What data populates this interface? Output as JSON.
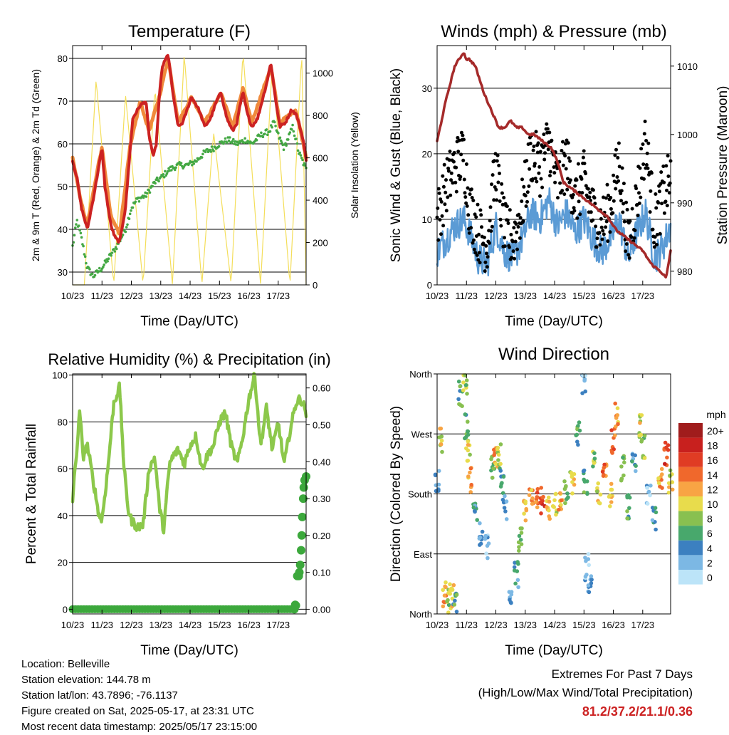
{
  "panels": {
    "temp": {
      "title": "Temperature (F)",
      "xlabel": "Time (Day/UTC)",
      "ylabel_left": "2m & 9m T (Red, Orange) & 2m Td (Green)",
      "ylabel_right": "Solar Insolation (Yellow)"
    },
    "wind": {
      "title": "Winds (mph) & Pressure (mb)",
      "xlabel": "Time (Day/UTC)",
      "ylabel_left": "Sonic Wind & Gust (Blue, Black)",
      "ylabel_right": "Station Pressure (Maroon)"
    },
    "rh": {
      "title": "Relative Humidity (%) & Precipitation (in)",
      "xlabel": "Time (Day/UTC)",
      "ylabel_left": "Percent & Total Rainfall"
    },
    "dir": {
      "title": "Wind Direction",
      "xlabel": "Time (Day/UTC)",
      "ylabel_left": "Direction (Colored By Speed)"
    }
  },
  "colorbar": {
    "unit": "mph",
    "labels": [
      "20+",
      "18",
      "16",
      "14",
      "12",
      "10",
      "8",
      "6",
      "4",
      "2",
      "0"
    ],
    "colors": [
      "#a01c1c",
      "#c8201e",
      "#e03c24",
      "#f0682c",
      "#f8a444",
      "#e8dc4c",
      "#88c050",
      "#48a86c",
      "#3c80c0",
      "#7cb8e4",
      "#bce4f8"
    ]
  },
  "info": {
    "location": "Location: Belleville",
    "elevation": "Station elevation: 144.78 m",
    "latlon": "Station lat/lon: 43.7896; -76.1137",
    "created": "Figure created on Sat, 2025-05-17, at 23:31 UTC",
    "recent": "Most recent data timestamp: 2025/05/17 23:15:00"
  },
  "extremes": {
    "line1": "Extremes For Past 7 Days",
    "line2": "(High/Low/Max Wind/Total Precipitation)",
    "values": "81.2/37.2/21.1/0.36"
  },
  "chart_data": [
    {
      "type": "line",
      "title": "Temperature (F)",
      "xlabel": "Time (Day/UTC)",
      "ylabel": "2m & 9m T (Red, Orange) & 2m Td (Green)",
      "y2label": "Solar Insolation (Yellow)",
      "x_ticks": [
        "10/23",
        "11/23",
        "12/23",
        "13/23",
        "14/23",
        "15/23",
        "16/23",
        "17/23"
      ],
      "xlim": [
        10,
        17.95
      ],
      "ylim": [
        27,
        83
      ],
      "y_ticks": [
        30,
        40,
        50,
        60,
        70,
        80
      ],
      "y2lim": [
        0,
        1130
      ],
      "y2_ticks": [
        0,
        200,
        400,
        600,
        800,
        1000
      ],
      "grid": true,
      "series": [
        {
          "name": "2m T",
          "color": "#cc2222",
          "x": [
            10.0,
            10.15,
            10.3,
            10.5,
            10.7,
            10.9,
            11.0,
            11.1,
            11.3,
            11.45,
            11.6,
            11.8,
            11.95,
            12.05,
            12.3,
            12.5,
            12.6,
            12.75,
            12.85,
            12.95,
            13.05,
            13.25,
            13.45,
            13.6,
            13.75,
            13.9,
            14.05,
            14.3,
            14.5,
            14.7,
            14.9,
            15.05,
            15.25,
            15.45,
            15.6,
            15.7,
            15.8,
            15.95,
            16.1,
            16.3,
            16.45,
            16.6,
            16.75,
            16.9,
            17.05,
            17.25,
            17.45,
            17.6,
            17.7,
            17.85,
            17.95
          ],
          "y": [
            56,
            52,
            45,
            40,
            47,
            55,
            59,
            50,
            41,
            38,
            37,
            45,
            58,
            66,
            69,
            70,
            62,
            57,
            60,
            71,
            78,
            81,
            70,
            64,
            65,
            68,
            71,
            68,
            64,
            66,
            70,
            72,
            66,
            63,
            65,
            69,
            72,
            67,
            64,
            66,
            70,
            74,
            79,
            71,
            64,
            65,
            68,
            67,
            65,
            61,
            56
          ]
        },
        {
          "name": "9m T",
          "color": "#f08a3c",
          "x": [
            10.0,
            10.3,
            10.5,
            10.9,
            11.0,
            11.3,
            11.6,
            11.95,
            12.3,
            12.6,
            12.95,
            13.25,
            13.6,
            14.05,
            14.5,
            15.05,
            15.45,
            15.8,
            16.1,
            16.6,
            16.75,
            17.05,
            17.6,
            17.95
          ],
          "y": [
            57,
            46,
            41,
            56,
            59,
            43,
            39,
            59,
            70,
            63,
            71,
            80,
            65,
            71,
            65,
            72,
            64,
            73,
            65,
            75,
            78,
            65,
            68,
            57
          ]
        },
        {
          "name": "2m Td",
          "color": "#44a844",
          "x": [
            10.0,
            10.15,
            10.3,
            10.5,
            10.7,
            11.0,
            11.2,
            11.5,
            11.8,
            12.0,
            12.2,
            12.5,
            12.8,
            13.0,
            13.3,
            13.6,
            13.9,
            14.2,
            14.5,
            14.8,
            15.0,
            15.3,
            15.6,
            15.9,
            16.1,
            16.4,
            16.7,
            16.85,
            17.0,
            17.2,
            17.5,
            17.7,
            17.95
          ],
          "y": [
            36,
            42,
            38,
            31,
            29,
            31,
            33,
            36,
            40,
            45,
            47,
            48,
            51,
            52,
            54,
            55,
            55,
            56,
            58,
            59,
            60,
            61,
            60,
            61,
            60,
            62,
            63,
            65,
            62,
            59,
            64,
            58,
            54
          ]
        },
        {
          "name": "Solar Insolation",
          "color": "#f4de5a",
          "axis": "y2",
          "x": [
            10.0,
            10.4,
            10.8,
            11.4,
            11.8,
            12.4,
            12.8,
            13.4,
            13.8,
            14.4,
            14.8,
            15.4,
            15.8,
            16.4,
            16.8,
            17.4,
            17.8,
            17.95
          ],
          "y": [
            0,
            0,
            970,
            0,
            900,
            0,
            930,
            0,
            1090,
            0,
            720,
            0,
            1100,
            0,
            1050,
            0,
            1100,
            0
          ]
        }
      ]
    },
    {
      "type": "scatter",
      "title": "Winds (mph) & Pressure (mb)",
      "xlabel": "Time (Day/UTC)",
      "ylabel": "Sonic Wind & Gust (Blue, Black)",
      "y2label": "Station Pressure (Maroon)",
      "x_ticks": [
        "10/23",
        "11/23",
        "12/23",
        "13/23",
        "14/23",
        "15/23",
        "16/23",
        "17/23"
      ],
      "xlim": [
        10,
        17.95
      ],
      "ylim": [
        0,
        36.5
      ],
      "y_ticks": [
        0,
        10,
        20,
        30
      ],
      "y2lim": [
        978,
        1013
      ],
      "y2_ticks": [
        980,
        990,
        1000,
        1010
      ],
      "grid": true,
      "series": [
        {
          "name": "Sonic Wind",
          "color": "#5b9bd5",
          "x": [
            10.0,
            10.3,
            10.6,
            10.9,
            11.1,
            11.4,
            11.7,
            12.0,
            12.3,
            12.6,
            12.9,
            13.2,
            13.5,
            13.8,
            14.1,
            14.4,
            14.7,
            15.0,
            15.3,
            15.6,
            15.9,
            16.2,
            16.5,
            16.8,
            17.1,
            17.4,
            17.7,
            17.95
          ],
          "y": [
            5,
            7,
            9,
            10,
            8,
            4,
            3,
            9,
            5,
            4,
            7,
            11,
            10,
            13,
            9,
            11,
            8,
            10,
            7,
            5,
            7,
            10,
            4,
            8,
            11,
            4,
            6,
            9
          ]
        },
        {
          "name": "Gust",
          "color": "#000000",
          "x": [
            10.0,
            10.3,
            10.6,
            10.9,
            11.1,
            11.4,
            11.7,
            12.0,
            12.3,
            12.6,
            12.9,
            13.2,
            13.5,
            13.8,
            14.1,
            14.4,
            14.7,
            15.0,
            15.3,
            15.6,
            15.9,
            16.2,
            16.5,
            16.8,
            17.1,
            17.4,
            17.7,
            17.95
          ],
          "y": [
            10,
            15,
            18,
            20,
            12,
            8,
            6,
            18,
            8,
            7,
            12,
            20,
            18,
            22,
            15,
            19,
            13,
            16,
            11,
            9,
            12,
            19,
            6,
            13,
            22,
            9,
            14,
            16
          ]
        },
        {
          "name": "Station Pressure",
          "color": "#a52a2a",
          "axis": "y2",
          "x": [
            10.0,
            10.3,
            10.6,
            10.9,
            11.0,
            11.1,
            11.3,
            11.6,
            11.9,
            12.1,
            12.3,
            12.5,
            12.7,
            12.9,
            13.1,
            13.3,
            13.6,
            13.9,
            14.1,
            14.3,
            14.6,
            14.9,
            15.2,
            15.5,
            15.8,
            16.1,
            16.4,
            16.7,
            17.0,
            17.3,
            17.6,
            17.8,
            17.95
          ],
          "y": [
            999,
            1005,
            1010,
            1012,
            1011,
            1011,
            1010,
            1006,
            1003,
            1001,
            1001,
            1002,
            1001,
            1001,
            1000,
            1000,
            999,
            998,
            996,
            993,
            992,
            991,
            990,
            989,
            988,
            986,
            985,
            984,
            983,
            981,
            980,
            979,
            983
          ]
        }
      ]
    },
    {
      "type": "line",
      "title": "Relative Humidity (%) & Precipitation (in)",
      "xlabel": "Time (Day/UTC)",
      "ylabel": "Percent & Total Rainfall",
      "x_ticks": [
        "10/23",
        "11/23",
        "12/23",
        "13/23",
        "14/23",
        "15/23",
        "16/23",
        "17/23"
      ],
      "xlim": [
        10,
        17.95
      ],
      "ylim": [
        -2,
        100.5
      ],
      "y_ticks": [
        0,
        20,
        40,
        60,
        80,
        100
      ],
      "y2lim": [
        -0.0127,
        0.638
      ],
      "y2_ticks": [
        "0.00",
        "0.10",
        "0.20",
        "0.30",
        "0.40",
        "0.50",
        "0.60"
      ],
      "grid": true,
      "series": [
        {
          "name": "Relative Humidity",
          "color": "#8cc84b",
          "x": [
            10.0,
            10.1,
            10.25,
            10.35,
            10.5,
            10.7,
            10.9,
            11.0,
            11.2,
            11.4,
            11.6,
            11.75,
            11.9,
            12.0,
            12.2,
            12.4,
            12.6,
            12.8,
            12.95,
            13.1,
            13.3,
            13.45,
            13.6,
            13.8,
            14.0,
            14.2,
            14.4,
            14.6,
            14.8,
            15.0,
            15.2,
            15.4,
            15.6,
            15.8,
            16.0,
            16.2,
            16.4,
            16.6,
            16.8,
            17.0,
            17.2,
            17.4,
            17.6,
            17.75,
            17.9,
            17.95
          ],
          "y": [
            47,
            62,
            85,
            65,
            70,
            55,
            40,
            38,
            60,
            88,
            95,
            60,
            42,
            38,
            35,
            36,
            60,
            65,
            44,
            34,
            62,
            66,
            68,
            62,
            70,
            74,
            60,
            66,
            70,
            80,
            84,
            70,
            62,
            74,
            90,
            100,
            70,
            86,
            68,
            80,
            62,
            76,
            88,
            90,
            86,
            84
          ]
        },
        {
          "name": "Total Rainfall",
          "color": "#3ca83c",
          "axis": "y2",
          "x": [
            10.0,
            11.0,
            12.0,
            13.0,
            14.0,
            15.0,
            16.0,
            17.0,
            17.5,
            17.55,
            17.6,
            17.65,
            17.7,
            17.72,
            17.75,
            17.78,
            17.8,
            17.82,
            17.85,
            17.87,
            17.9,
            17.95
          ],
          "y": [
            0.0,
            0.0,
            0.0,
            0.0,
            0.0,
            0.0,
            0.0,
            0.0,
            0.0,
            0.0,
            0.01,
            0.09,
            0.09,
            0.1,
            0.12,
            0.16,
            0.2,
            0.25,
            0.3,
            0.33,
            0.35,
            0.36
          ]
        }
      ]
    },
    {
      "type": "scatter",
      "title": "Wind Direction",
      "xlabel": "Time (Day/UTC)",
      "ylabel": "Direction (Colored By Speed)",
      "x_ticks": [
        "10/23",
        "11/23",
        "12/23",
        "13/23",
        "14/23",
        "15/23",
        "16/23",
        "17/23"
      ],
      "xlim": [
        10,
        17.95
      ],
      "ylim": [
        0,
        360
      ],
      "y_ticks": [
        "North",
        "East",
        "South",
        "West",
        "North"
      ],
      "grid": true,
      "series": [
        {
          "name": "Wind Direction",
          "x": [
            10.0,
            10.1,
            10.25,
            10.4,
            10.5,
            10.6,
            10.8,
            10.95,
            11.0,
            11.05,
            11.1,
            11.3,
            11.5,
            11.7,
            11.9,
            12.0,
            12.1,
            12.2,
            12.3,
            12.5,
            12.7,
            12.85,
            13.0,
            13.2,
            13.4,
            13.6,
            13.8,
            14.0,
            14.2,
            14.4,
            14.6,
            14.8,
            15.0,
            15.05,
            15.1,
            15.2,
            15.3,
            15.5,
            15.7,
            15.9,
            16.0,
            16.1,
            16.3,
            16.5,
            16.7,
            16.9,
            17.0,
            17.2,
            17.4,
            17.6,
            17.8,
            17.95
          ],
          "y": [
            200,
            260,
            30,
            20,
            25,
            20,
            330,
            350,
            280,
            240,
            200,
            150,
            120,
            100,
            220,
            230,
            240,
            200,
            160,
            30,
            60,
            110,
            150,
            180,
            170,
            170,
            160,
            165,
            170,
            180,
            200,
            270,
            350,
            200,
            70,
            40,
            240,
            180,
            220,
            180,
            260,
            300,
            220,
            160,
            230,
            280,
            250,
            180,
            140,
            200,
            240,
            200
          ],
          "speed": [
            3,
            10,
            12,
            8,
            11,
            6,
            6,
            8,
            6,
            10,
            12,
            4,
            3,
            2,
            6,
            12,
            9,
            5,
            3,
            3,
            4,
            7,
            11,
            12,
            14,
            16,
            12,
            9,
            12,
            8,
            10,
            6,
            2,
            6,
            2,
            3,
            8,
            10,
            14,
            10,
            14,
            12,
            8,
            6,
            4,
            10,
            8,
            2,
            4,
            12,
            16,
            10
          ]
        }
      ]
    }
  ]
}
